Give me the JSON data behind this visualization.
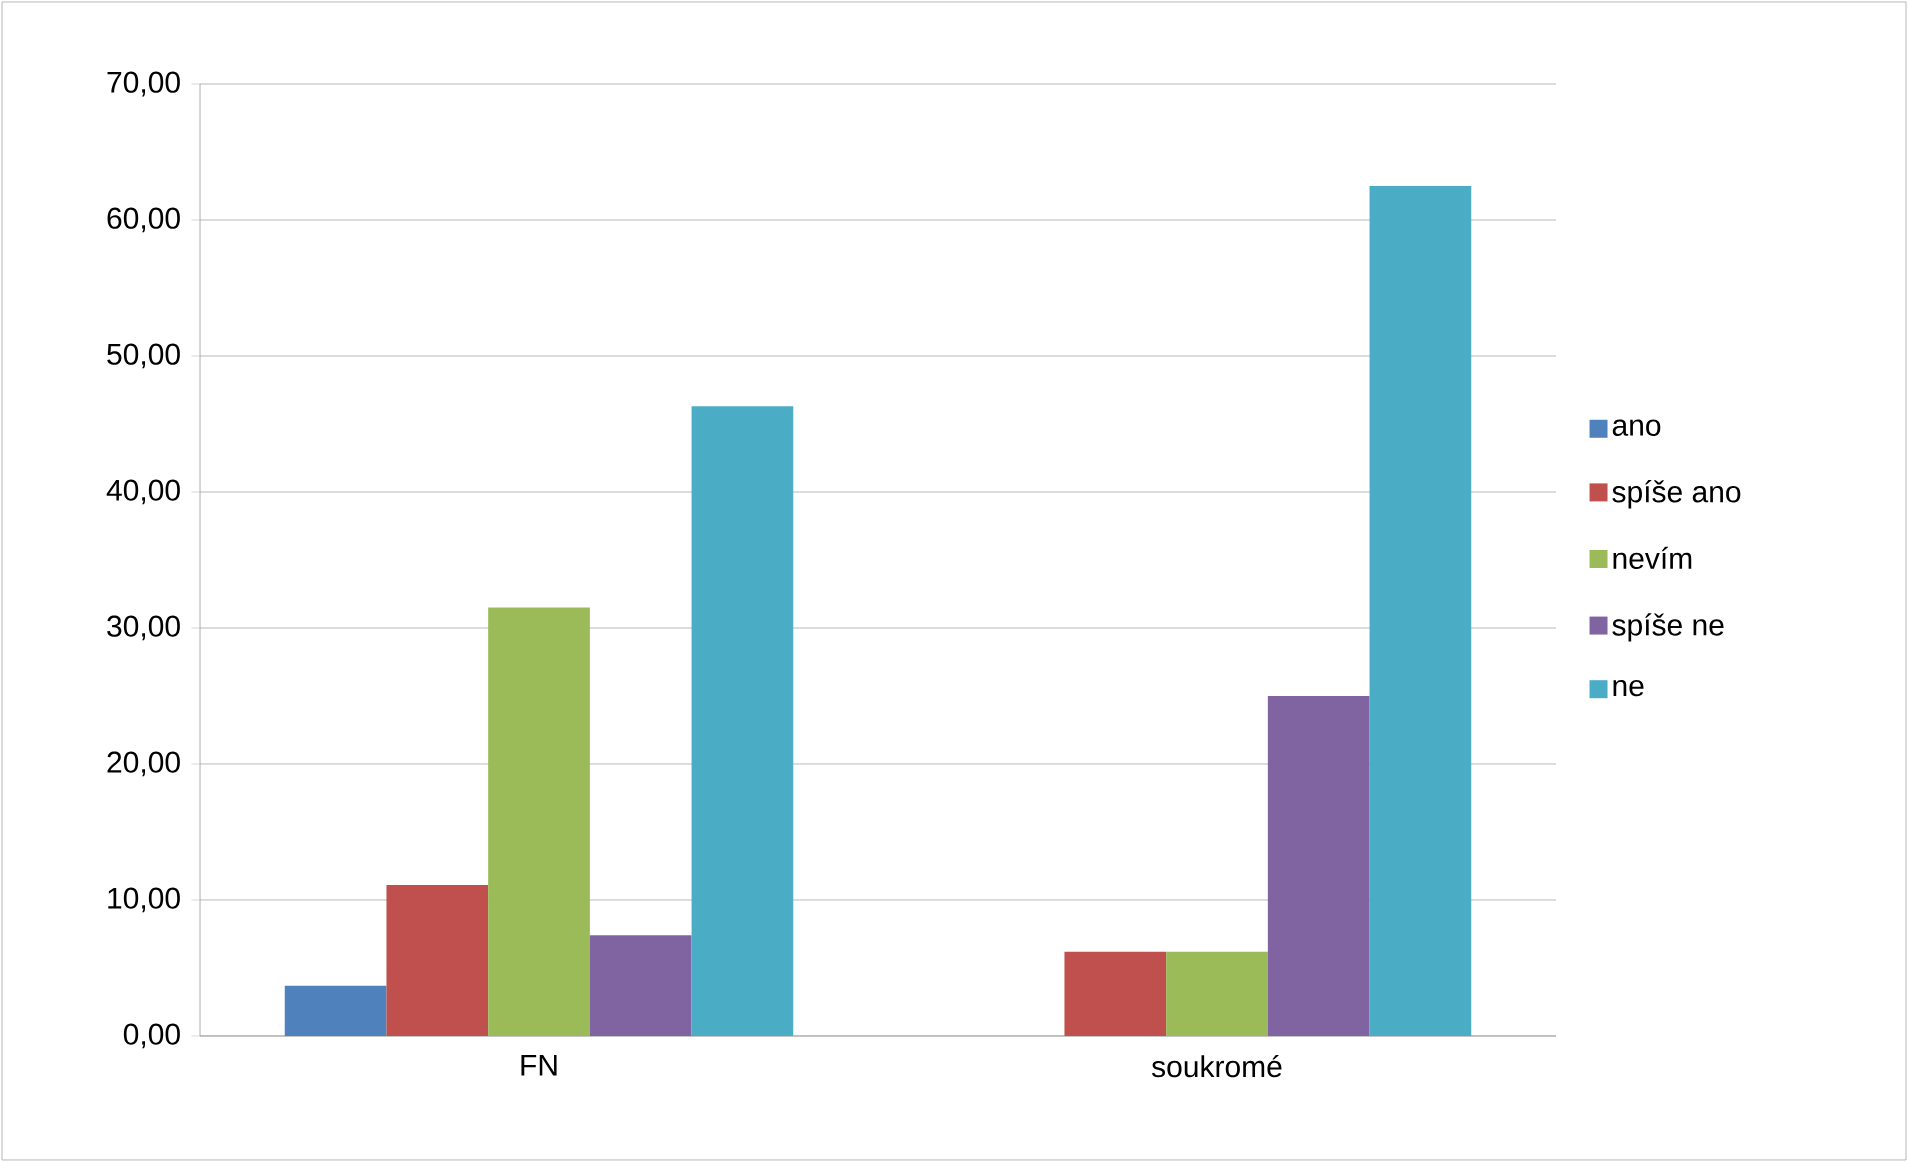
{
  "chart_data": {
    "type": "bar",
    "categories": [
      "FN",
      "soukromé"
    ],
    "series": [
      {
        "name": "ano",
        "color": "#4f81bd",
        "values": [
          3.7,
          0
        ]
      },
      {
        "name": "spíše ano",
        "color": "#c0504d",
        "values": [
          11.1,
          6.2
        ]
      },
      {
        "name": "nevím",
        "color": "#9bbb59",
        "values": [
          31.5,
          6.2
        ]
      },
      {
        "name": "spíše ne",
        "color": "#8064a2",
        "values": [
          7.4,
          25
        ]
      },
      {
        "name": "ne",
        "color": "#4bacc6",
        "values": [
          46.3,
          62.5
        ]
      }
    ],
    "ylim": [
      0,
      70
    ],
    "yticks": [
      {
        "value": 0,
        "label": "0,00"
      },
      {
        "value": 10,
        "label": "10,00"
      },
      {
        "value": 20,
        "label": "20,00"
      },
      {
        "value": 30,
        "label": "30,00"
      },
      {
        "value": 40,
        "label": "40,00"
      },
      {
        "value": 50,
        "label": "50,00"
      },
      {
        "value": 60,
        "label": "60,00"
      },
      {
        "value": 70,
        "label": "70,00"
      }
    ],
    "grid": "y",
    "legend": "right"
  }
}
